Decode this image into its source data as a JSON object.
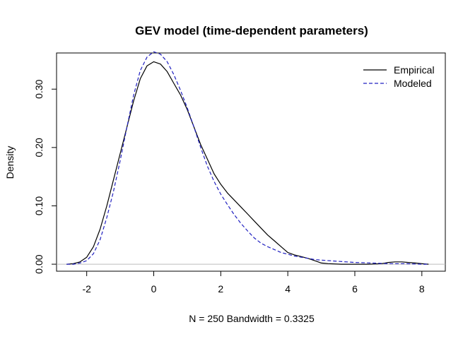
{
  "chart_data": {
    "type": "line",
    "title": "GEV model (time-dependent parameters)",
    "xlabel": "N = 250   Bandwidth = 0.3325",
    "ylabel": "Density",
    "xlim": [
      -2.9,
      8.7
    ],
    "ylim": [
      -0.012,
      0.362
    ],
    "x_ticks": [
      -2,
      0,
      2,
      4,
      6,
      8
    ],
    "x_tick_labels": [
      "-2",
      "0",
      "2",
      "4",
      "6",
      "8"
    ],
    "y_ticks": [
      0.0,
      0.1,
      0.2,
      0.3
    ],
    "y_tick_labels": [
      "0.00",
      "0.10",
      "0.20",
      "0.30"
    ],
    "grid": false,
    "baseline": 0,
    "legend": {
      "position": "top-right"
    },
    "series": [
      {
        "name": "Empirical",
        "color": "#000000",
        "dash": "solid",
        "x": [
          -2.6,
          -2.4,
          -2.2,
          -2.0,
          -1.8,
          -1.6,
          -1.4,
          -1.2,
          -1.0,
          -0.8,
          -0.6,
          -0.4,
          -0.2,
          0.0,
          0.2,
          0.4,
          0.6,
          0.8,
          1.0,
          1.2,
          1.4,
          1.6,
          1.8,
          2.0,
          2.2,
          2.4,
          2.6,
          2.8,
          3.0,
          3.2,
          3.4,
          3.6,
          3.8,
          4.0,
          4.2,
          4.4,
          4.6,
          4.8,
          5.0,
          5.2,
          5.6,
          6.0,
          6.4,
          6.8,
          7.0,
          7.2,
          7.4,
          7.6,
          7.8,
          8.0,
          8.2
        ],
        "y": [
          0.0,
          0.001,
          0.004,
          0.012,
          0.03,
          0.06,
          0.1,
          0.145,
          0.19,
          0.235,
          0.28,
          0.318,
          0.34,
          0.347,
          0.343,
          0.33,
          0.31,
          0.29,
          0.265,
          0.235,
          0.205,
          0.18,
          0.155,
          0.137,
          0.122,
          0.11,
          0.098,
          0.086,
          0.074,
          0.062,
          0.05,
          0.04,
          0.03,
          0.02,
          0.016,
          0.013,
          0.01,
          0.006,
          0.002,
          0.001,
          0.0,
          0.0,
          0.0,
          0.001,
          0.003,
          0.004,
          0.004,
          0.003,
          0.002,
          0.001,
          0.0
        ]
      },
      {
        "name": "Modeled",
        "color": "#2020c0",
        "dash": "dashed",
        "x": [
          -2.6,
          -2.4,
          -2.2,
          -2.0,
          -1.8,
          -1.6,
          -1.4,
          -1.2,
          -1.0,
          -0.8,
          -0.6,
          -0.4,
          -0.2,
          0.0,
          0.2,
          0.4,
          0.6,
          0.8,
          1.0,
          1.2,
          1.4,
          1.6,
          1.8,
          2.0,
          2.2,
          2.4,
          2.6,
          2.8,
          3.0,
          3.2,
          3.4,
          3.6,
          3.8,
          4.0,
          4.2,
          4.4,
          4.6,
          4.8,
          5.0,
          5.5,
          6.0,
          6.5,
          7.0,
          7.5,
          8.0,
          8.2
        ],
        "y": [
          0.0,
          0.0,
          0.002,
          0.006,
          0.018,
          0.042,
          0.08,
          0.125,
          0.178,
          0.235,
          0.29,
          0.332,
          0.355,
          0.364,
          0.36,
          0.347,
          0.325,
          0.298,
          0.268,
          0.235,
          0.2,
          0.168,
          0.142,
          0.12,
          0.102,
          0.085,
          0.07,
          0.057,
          0.045,
          0.036,
          0.03,
          0.025,
          0.02,
          0.017,
          0.014,
          0.012,
          0.01,
          0.008,
          0.007,
          0.005,
          0.003,
          0.002,
          0.001,
          0.001,
          0.0,
          0.0
        ]
      }
    ]
  }
}
